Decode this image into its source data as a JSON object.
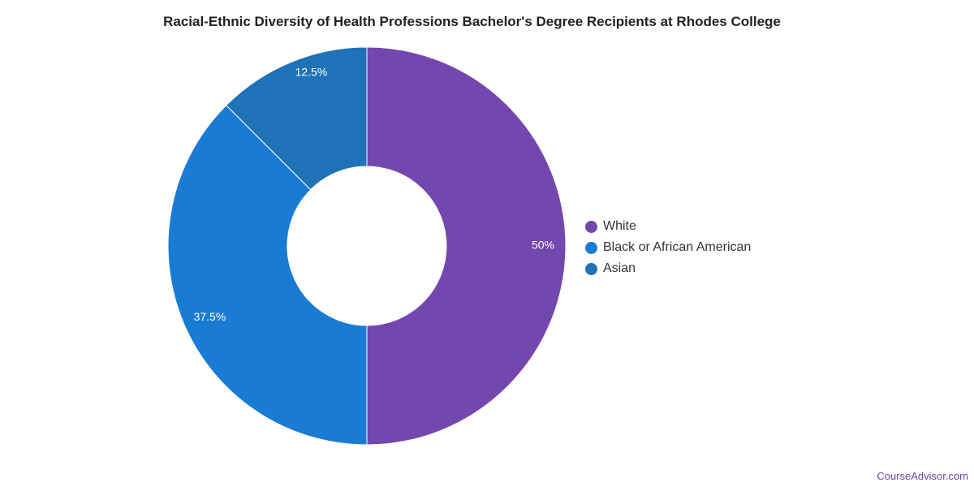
{
  "chart_data": {
    "type": "pie",
    "title": "Racial-Ethnic Diversity of Health Professions Bachelor's Degree Recipients at Rhodes College",
    "donut": true,
    "legend_position": "right",
    "slices": [
      {
        "name": "White",
        "value": 50,
        "label": "50%",
        "color": "#7447af"
      },
      {
        "name": "Black or African American",
        "value": 37.5,
        "label": "37.5%",
        "color": "#1a7bd4"
      },
      {
        "name": "Asian",
        "value": 12.5,
        "label": "12.5%",
        "color": "#1f72b8"
      }
    ]
  },
  "source": "CourseAdvisor.com"
}
